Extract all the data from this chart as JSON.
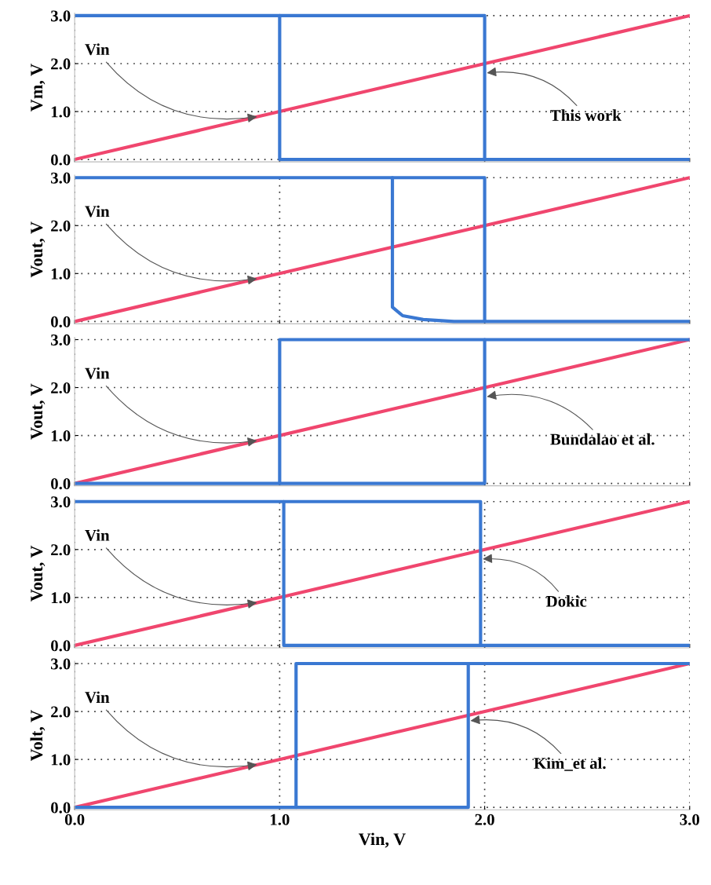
{
  "chart_data": [
    {
      "type": "line",
      "ylabel": "Vm, V",
      "xlim": [
        0,
        3
      ],
      "ylim": [
        -0.05,
        3.05
      ],
      "xticks": [
        {
          "value": 0,
          "label": null
        },
        {
          "value": 1,
          "label": null
        },
        {
          "value": 2,
          "label": null
        },
        {
          "value": 3,
          "label": null
        }
      ],
      "yticks": [
        {
          "value": 0,
          "label": "0.0"
        },
        {
          "value": 1,
          "label": "1.0"
        },
        {
          "value": 2,
          "label": "2.0"
        },
        {
          "value": 3,
          "label": "3.0"
        }
      ],
      "grid": true,
      "tick_labels": "y",
      "marker": "none",
      "line_style": "solid",
      "series": [
        {
          "color": "#f0466e",
          "x": [
            0,
            3
          ],
          "values": [
            0,
            3
          ]
        },
        {
          "color": "#3a78d2",
          "x": [
            0,
            2.0,
            2.0,
            3
          ],
          "values": [
            3,
            3,
            0,
            0
          ]
        },
        {
          "color": "#3a78d2",
          "x": [
            1.0,
            1.0,
            2.0
          ],
          "values": [
            3,
            0,
            0
          ]
        }
      ],
      "annotations": [
        {
          "text": "Vin",
          "x": 0.9,
          "y": 0.9
        },
        {
          "text": "This work",
          "x": 2.0,
          "y": 1.8
        }
      ]
    },
    {
      "type": "line",
      "ylabel": "Vout, V",
      "xlim": [
        0,
        3
      ],
      "ylim": [
        -0.05,
        3.05
      ],
      "xticks": [
        {
          "value": 0,
          "label": null
        },
        {
          "value": 1,
          "label": null
        },
        {
          "value": 2,
          "label": null
        },
        {
          "value": 3,
          "label": null
        }
      ],
      "yticks": [
        {
          "value": 0,
          "label": "0.0"
        },
        {
          "value": 1,
          "label": "1.0"
        },
        {
          "value": 2,
          "label": "2.0"
        },
        {
          "value": 3,
          "label": "3.0"
        }
      ],
      "grid": true,
      "tick_labels": "y",
      "marker": "none",
      "line_style": "solid",
      "series": [
        {
          "color": "#f0466e",
          "x": [
            0,
            3
          ],
          "values": [
            0,
            3
          ]
        },
        {
          "color": "#3a78d2",
          "x": [
            0,
            2.0,
            2.0,
            3
          ],
          "values": [
            3,
            3,
            0,
            0
          ]
        },
        {
          "color": "#3a78d2",
          "x": [
            1.55,
            1.55,
            1.6,
            1.7,
            1.85,
            2.0
          ],
          "values": [
            3,
            0.3,
            0.12,
            0.04,
            0,
            0
          ]
        }
      ],
      "annotations": [
        {
          "text": "Vin",
          "x": 0.9,
          "y": 0.9
        }
      ]
    },
    {
      "type": "line",
      "ylabel": "Vout, V",
      "xlim": [
        0,
        3
      ],
      "ylim": [
        -0.05,
        3.05
      ],
      "xticks": [
        {
          "value": 0,
          "label": null
        },
        {
          "value": 1,
          "label": null
        },
        {
          "value": 2,
          "label": null
        },
        {
          "value": 3,
          "label": null
        }
      ],
      "yticks": [
        {
          "value": 0,
          "label": "0.0"
        },
        {
          "value": 1,
          "label": "1.0"
        },
        {
          "value": 2,
          "label": "2.0"
        },
        {
          "value": 3,
          "label": "3.0"
        }
      ],
      "grid": true,
      "tick_labels": "y",
      "marker": "none",
      "line_style": "solid",
      "series": [
        {
          "color": "#f0466e",
          "x": [
            0,
            3
          ],
          "values": [
            0,
            3
          ]
        },
        {
          "color": "#3a78d2",
          "x": [
            0,
            2.0,
            2.0,
            3
          ],
          "values": [
            0,
            0,
            3,
            3
          ]
        },
        {
          "color": "#3a78d2",
          "x": [
            1.0,
            1.0,
            2.0
          ],
          "values": [
            0,
            3,
            3
          ]
        }
      ],
      "annotations": [
        {
          "text": "Vin",
          "x": 0.9,
          "y": 0.9
        },
        {
          "text": "Bundalao et al.",
          "x": 2.0,
          "y": 1.8
        }
      ]
    },
    {
      "type": "line",
      "ylabel": "Vout, V",
      "xlim": [
        0,
        3
      ],
      "ylim": [
        -0.05,
        3.05
      ],
      "xticks": [
        {
          "value": 0,
          "label": null
        },
        {
          "value": 1,
          "label": null
        },
        {
          "value": 2,
          "label": null
        },
        {
          "value": 3,
          "label": null
        }
      ],
      "yticks": [
        {
          "value": 0,
          "label": "0.0"
        },
        {
          "value": 1,
          "label": "1.0"
        },
        {
          "value": 2,
          "label": "2.0"
        },
        {
          "value": 3,
          "label": "3.0"
        }
      ],
      "grid": true,
      "tick_labels": "y",
      "marker": "none",
      "line_style": "solid",
      "series": [
        {
          "color": "#f0466e",
          "x": [
            0,
            3
          ],
          "values": [
            0,
            3
          ]
        },
        {
          "color": "#3a78d2",
          "x": [
            0,
            1.98,
            1.98,
            3
          ],
          "values": [
            3,
            3,
            0,
            0
          ]
        },
        {
          "color": "#3a78d2",
          "x": [
            1.02,
            1.02,
            1.98
          ],
          "values": [
            3,
            0,
            0
          ]
        }
      ],
      "annotations": [
        {
          "text": "Vin",
          "x": 0.9,
          "y": 0.9
        },
        {
          "text": "Dokic",
          "x": 1.98,
          "y": 1.8
        }
      ]
    },
    {
      "type": "line",
      "ylabel": "Volt, V",
      "xlabel": "Vin, V",
      "xlim": [
        0,
        3
      ],
      "ylim": [
        -0.05,
        3.05
      ],
      "xticks": [
        {
          "value": 0,
          "label": "0.0"
        },
        {
          "value": 1,
          "label": "1.0"
        },
        {
          "value": 2,
          "label": "2.0"
        },
        {
          "value": 3,
          "label": "3.0"
        }
      ],
      "yticks": [
        {
          "value": 0,
          "label": "0.0"
        },
        {
          "value": 1,
          "label": "1.0"
        },
        {
          "value": 2,
          "label": "2.0"
        },
        {
          "value": 3,
          "label": "3.0"
        }
      ],
      "grid": true,
      "marker": "none",
      "line_style": "solid",
      "series": [
        {
          "color": "#f0466e",
          "x": [
            0,
            3
          ],
          "values": [
            0,
            3
          ]
        },
        {
          "color": "#3a78d2",
          "x": [
            0,
            1.92,
            1.92,
            3
          ],
          "values": [
            0,
            0,
            3,
            3
          ]
        },
        {
          "color": "#3a78d2",
          "x": [
            1.08,
            1.08,
            1.92
          ],
          "values": [
            0,
            3,
            3
          ]
        }
      ],
      "annotations": [
        {
          "text": "Vin",
          "x": 0.9,
          "y": 0.9
        },
        {
          "text": "Kim_et al.",
          "x": 1.92,
          "y": 1.8
        }
      ]
    }
  ]
}
